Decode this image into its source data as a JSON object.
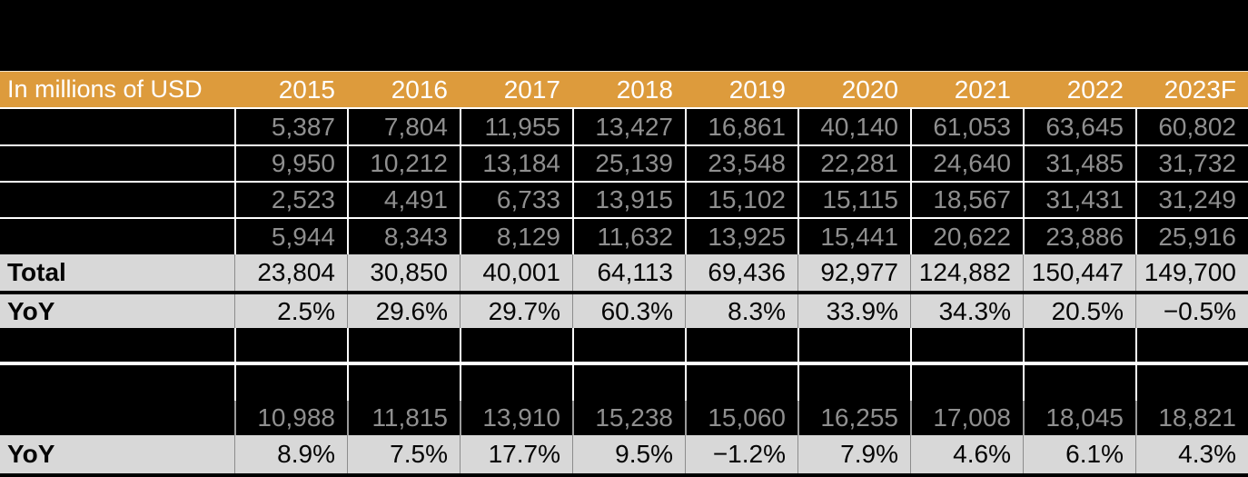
{
  "colors": {
    "header_orange": "#DD9B3C",
    "header_text": "#FFFFFF",
    "band_gray": "#D8D8D8",
    "band_text": "#000000",
    "dark_cell_bg": "#000000",
    "dark_cell_text": "#8F8F8F",
    "grid_white": "#FFFFFF",
    "grid_gray": "#8C8C8C"
  },
  "table": {
    "unit_label": "In millions of USD",
    "years": [
      "2015",
      "2016",
      "2017",
      "2018",
      "2019",
      "2020",
      "2021",
      "2022",
      "2023F"
    ],
    "segment_rows": [
      {
        "label": "",
        "values": [
          "5,387",
          "7,804",
          "11,955",
          "13,427",
          "16,861",
          "40,140",
          "61,053",
          "63,645",
          "60,802"
        ]
      },
      {
        "label": "",
        "values": [
          "9,950",
          "10,212",
          "13,184",
          "25,139",
          "23,548",
          "22,281",
          "24,640",
          "31,485",
          "31,732"
        ]
      },
      {
        "label": "",
        "values": [
          "2,523",
          "4,491",
          "6,733",
          "13,915",
          "15,102",
          "15,115",
          "18,567",
          "31,431",
          "31,249"
        ]
      },
      {
        "label": "",
        "values": [
          "5,944",
          "8,343",
          "8,129",
          "11,632",
          "13,925",
          "15,441",
          "20,622",
          "23,886",
          "25,916"
        ]
      }
    ],
    "total_row": {
      "label": "Total",
      "values": [
        "23,804",
        "30,850",
        "40,001",
        "64,113",
        "69,436",
        "92,977",
        "124,882",
        "150,447",
        "149,700"
      ]
    },
    "yoy_row": {
      "label": "YoY",
      "values": [
        "2.5%",
        "29.6%",
        "29.7%",
        "60.3%",
        "8.3%",
        "33.9%",
        "34.3%",
        "20.5%",
        "−0.5%"
      ]
    },
    "blank_values": [
      "",
      "",
      "",
      "",
      "",
      "",
      "",
      "",
      ""
    ],
    "section2": {
      "data_row": {
        "label": "",
        "values": [
          "10,988",
          "11,815",
          "13,910",
          "15,238",
          "15,060",
          "16,255",
          "17,008",
          "18,045",
          "18,821"
        ]
      },
      "yoy_row": {
        "label": "YoY",
        "values": [
          "8.9%",
          "7.5%",
          "17.7%",
          "9.5%",
          "−1.2%",
          "7.9%",
          "4.6%",
          "6.1%",
          "4.3%"
        ]
      }
    }
  }
}
